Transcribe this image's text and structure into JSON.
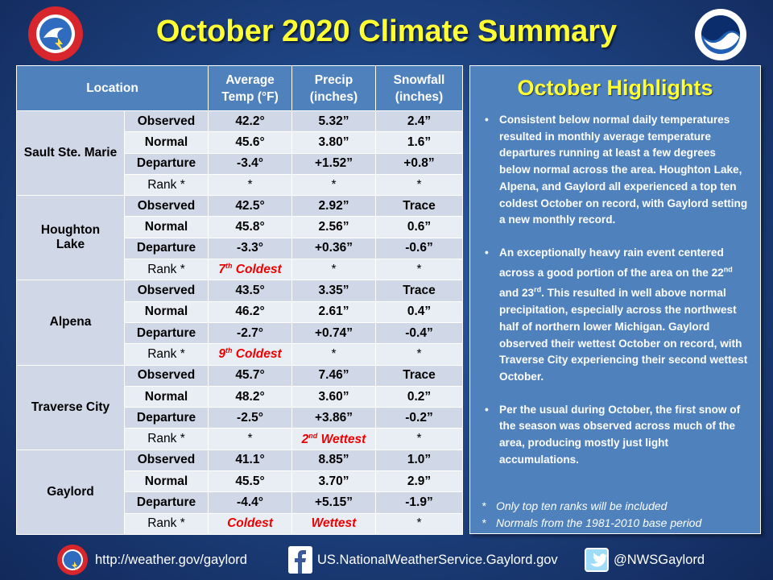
{
  "title": "October 2020 Climate Summary",
  "table": {
    "headers": {
      "location": "Location",
      "temp": [
        "Average",
        "Temp (°F)"
      ],
      "precip": [
        "Precip",
        "(inches)"
      ],
      "snow": [
        "Snowfall",
        "(inches)"
      ]
    },
    "rows": [
      {
        "location": [
          "Sault Ste. Marie"
        ],
        "data": [
          {
            "label": "Observed",
            "temp": "42.2°",
            "precip": "5.32”",
            "snow": "2.4”"
          },
          {
            "label": "Normal",
            "temp": "45.6°",
            "precip": "3.80”",
            "snow": "1.6”"
          },
          {
            "label": "Departure",
            "temp": "-3.4°",
            "precip": "+1.52”",
            "snow": "+0.8”"
          },
          {
            "label": "Rank *",
            "temp": "*",
            "precip": "*",
            "snow": "*"
          }
        ]
      },
      {
        "location": [
          "Houghton",
          "Lake"
        ],
        "data": [
          {
            "label": "Observed",
            "temp": "42.5°",
            "precip": "2.92”",
            "snow": "Trace"
          },
          {
            "label": "Normal",
            "temp": "45.8°",
            "precip": "2.56”",
            "snow": "0.6”"
          },
          {
            "label": "Departure",
            "temp": "-3.3°",
            "precip": "+0.36”",
            "snow": "-0.6”"
          },
          {
            "label": "Rank *",
            "temp": "7th Coldest",
            "precip": "*",
            "snow": "*"
          }
        ]
      },
      {
        "location": [
          "Alpena"
        ],
        "data": [
          {
            "label": "Observed",
            "temp": "43.5°",
            "precip": "3.35”",
            "snow": "Trace"
          },
          {
            "label": "Normal",
            "temp": "46.2°",
            "precip": "2.61”",
            "snow": "0.4”"
          },
          {
            "label": "Departure",
            "temp": "-2.7°",
            "precip": "+0.74”",
            "snow": "-0.4”"
          },
          {
            "label": "Rank *",
            "temp": "9th Coldest",
            "precip": "*",
            "snow": "*"
          }
        ]
      },
      {
        "location": [
          "Traverse City"
        ],
        "data": [
          {
            "label": "Observed",
            "temp": "45.7°",
            "precip": "7.46”",
            "snow": "Trace"
          },
          {
            "label": "Normal",
            "temp": "48.2°",
            "precip": "3.60”",
            "snow": "0.2”"
          },
          {
            "label": "Departure",
            "temp": "-2.5°",
            "precip": "+3.86”",
            "snow": "-0.2”"
          },
          {
            "label": "Rank *",
            "temp": "*",
            "precip": "2nd Wettest",
            "snow": "*"
          }
        ]
      },
      {
        "location": [
          "Gaylord"
        ],
        "data": [
          {
            "label": "Observed",
            "temp": "41.1°",
            "precip": "8.85”",
            "snow": "1.0”"
          },
          {
            "label": "Normal",
            "temp": "45.5°",
            "precip": "3.70”",
            "snow": "2.9”"
          },
          {
            "label": "Departure",
            "temp": "-4.4°",
            "precip": "+5.15”",
            "snow": "-1.9”"
          },
          {
            "label": "Rank *",
            "temp": "Coldest",
            "precip": "Wettest",
            "snow": "*"
          }
        ]
      }
    ]
  },
  "highlights": {
    "title": "October Highlights",
    "bullets": [
      "Consistent below normal daily temperatures resulted in monthly average temperature departures running at least a few degrees below normal across the area. Houghton Lake, Alpena, and Gaylord all experienced a top ten coldest October on record, with Gaylord setting a new monthly record.",
      "An exceptionally heavy rain event centered across a good portion of the area on the 22nd and 23rd. This resulted in well above normal precipitation, especially across the northwest half of northern lower Michigan. Gaylord observed their wettest October on record, with Traverse City experiencing their second wettest October.",
      "Per the usual during October, the first snow of the season was observed across much of the area, producing mostly just light accumulations."
    ],
    "notes": [
      "Only top ten ranks will be included",
      "Normals from the 1981-2010 base period"
    ]
  },
  "footer": {
    "website": "http://weather.gov/gaylord",
    "facebook": "US.NationalWeatherService.Gaylord.gov",
    "twitter": "@NWSGaylord"
  },
  "colors": {
    "title": "#ffff33",
    "header": "#4f81bd",
    "band_a": "#d0d8e8",
    "band_b": "#e9edf4",
    "rank_red": "#ee0000"
  },
  "logos": [
    "nws-logo",
    "noaa-logo"
  ]
}
